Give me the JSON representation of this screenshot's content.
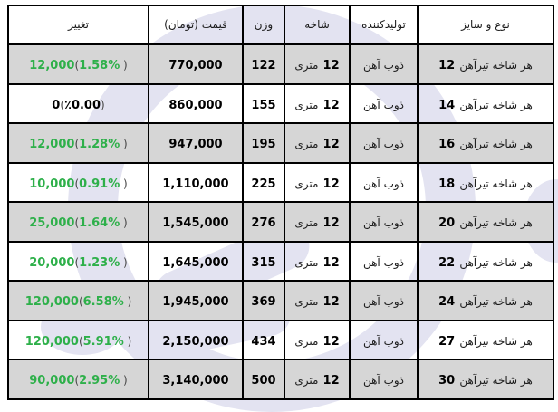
{
  "colors": {
    "change_up": "#2eb04a",
    "change_zero": "#000000",
    "alt_row_bg": "#d6d6d6",
    "table_border": "#000000",
    "watermark": "#e3e3f1",
    "page_bg": "#ffffff"
  },
  "watermark": {
    "description": "light lavender logo shapes behind white rows",
    "shapes": [
      "ring",
      "swoosh-1",
      "swoosh-2",
      "blob-left",
      "blob-right"
    ]
  },
  "table": {
    "direction": "rtl",
    "columns": [
      {
        "key": "type_size",
        "label": "نوع و سایز"
      },
      {
        "key": "producer",
        "label": "تولیدکننده"
      },
      {
        "key": "branch",
        "label": "شاخه"
      },
      {
        "key": "weight",
        "label": "وزن"
      },
      {
        "key": "price",
        "label": "قیمت (تومان)"
      },
      {
        "key": "change",
        "label": "تغییر"
      }
    ],
    "rows": [
      {
        "type_size": {
          "prefix": "هر شاخه تیرآهن",
          "size": "12"
        },
        "producer": "ذوب آهن",
        "branch": {
          "num": "12",
          "unit": "متری"
        },
        "weight": "122",
        "price": "770,000",
        "change": {
          "amount": "12,000",
          "open": "(",
          "pct": "1.58%",
          "close": " )",
          "zero": false
        }
      },
      {
        "type_size": {
          "prefix": "هر شاخه تیرآهن",
          "size": "14"
        },
        "producer": "ذوب آهن",
        "branch": {
          "num": "12",
          "unit": "متری"
        },
        "weight": "155",
        "price": "860,000",
        "change": {
          "amount": "0",
          "open": "(",
          "pct": "٪0.00",
          "close": ")",
          "zero": true
        }
      },
      {
        "type_size": {
          "prefix": "هر شاخه تیرآهن",
          "size": "16"
        },
        "producer": "ذوب آهن",
        "branch": {
          "num": "12",
          "unit": "متری"
        },
        "weight": "195",
        "price": "947,000",
        "change": {
          "amount": "12,000",
          "open": "(",
          "pct": "1.28%",
          "close": " )",
          "zero": false
        }
      },
      {
        "type_size": {
          "prefix": "هر شاخه تیرآهن",
          "size": "18"
        },
        "producer": "ذوب آهن",
        "branch": {
          "num": "12",
          "unit": "متری"
        },
        "weight": "225",
        "price": "1,110,000",
        "change": {
          "amount": "10,000",
          "open": "(",
          "pct": "0.91%",
          "close": " )",
          "zero": false
        }
      },
      {
        "type_size": {
          "prefix": "هر شاخه تیرآهن",
          "size": "20"
        },
        "producer": "ذوب آهن",
        "branch": {
          "num": "12",
          "unit": "متری"
        },
        "weight": "276",
        "price": "1,545,000",
        "change": {
          "amount": "25,000",
          "open": "(",
          "pct": "1.64%",
          "close": " )",
          "zero": false
        }
      },
      {
        "type_size": {
          "prefix": "هر شاخه تیرآهن",
          "size": "22"
        },
        "producer": "ذوب آهن",
        "branch": {
          "num": "12",
          "unit": "متری"
        },
        "weight": "315",
        "price": "1,645,000",
        "change": {
          "amount": "20,000",
          "open": "(",
          "pct": "1.23%",
          "close": " )",
          "zero": false
        }
      },
      {
        "type_size": {
          "prefix": "هر شاخه تیرآهن",
          "size": "24"
        },
        "producer": "ذوب آهن",
        "branch": {
          "num": "12",
          "unit": "متری"
        },
        "weight": "369",
        "price": "1,945,000",
        "change": {
          "amount": "120,000",
          "open": "(",
          "pct": "6.58%",
          "close": " )",
          "zero": false
        }
      },
      {
        "type_size": {
          "prefix": "هر شاخه تیرآهن",
          "size": "27"
        },
        "producer": "ذوب آهن",
        "branch": {
          "num": "12",
          "unit": "متری"
        },
        "weight": "434",
        "price": "2,150,000",
        "change": {
          "amount": "120,000",
          "open": "(",
          "pct": "5.91%",
          "close": " )",
          "zero": false
        }
      },
      {
        "type_size": {
          "prefix": "هر شاخه تیرآهن",
          "size": "30"
        },
        "producer": "ذوب آهن",
        "branch": {
          "num": "12",
          "unit": "متری"
        },
        "weight": "500",
        "price": "3,140,000",
        "change": {
          "amount": "90,000",
          "open": "(",
          "pct": "2.95%",
          "close": " )",
          "zero": false
        }
      }
    ]
  }
}
